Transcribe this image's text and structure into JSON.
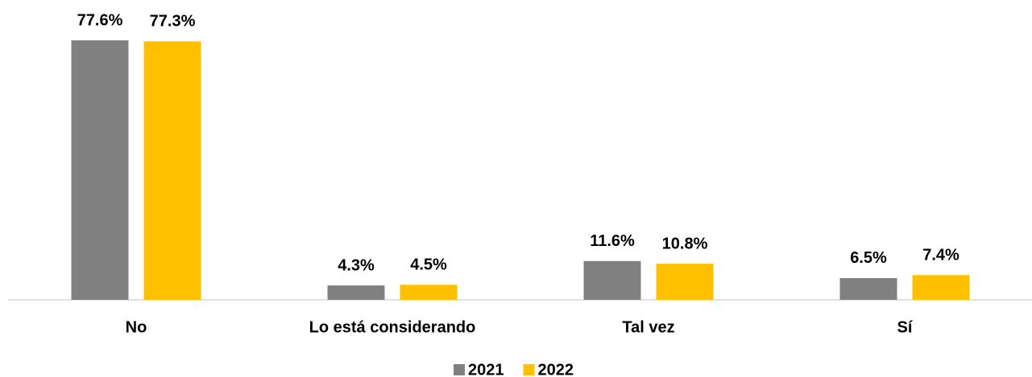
{
  "chart_data": {
    "type": "bar",
    "categories": [
      "No",
      "Lo está considerando",
      "Tal vez",
      "Sí"
    ],
    "series": [
      {
        "name": "2021",
        "color": "#808080",
        "values": [
          77.6,
          4.3,
          11.6,
          6.5
        ],
        "value_labels": [
          "77.6%",
          "4.3%",
          "11.6%",
          "6.5%"
        ]
      },
      {
        "name": "2022",
        "color": "#ffc000",
        "values": [
          77.3,
          4.5,
          10.8,
          7.4
        ],
        "value_labels": [
          "77.3%",
          "4.5%",
          "10.8%",
          "7.4%"
        ]
      }
    ],
    "legend": "bottom"
  }
}
